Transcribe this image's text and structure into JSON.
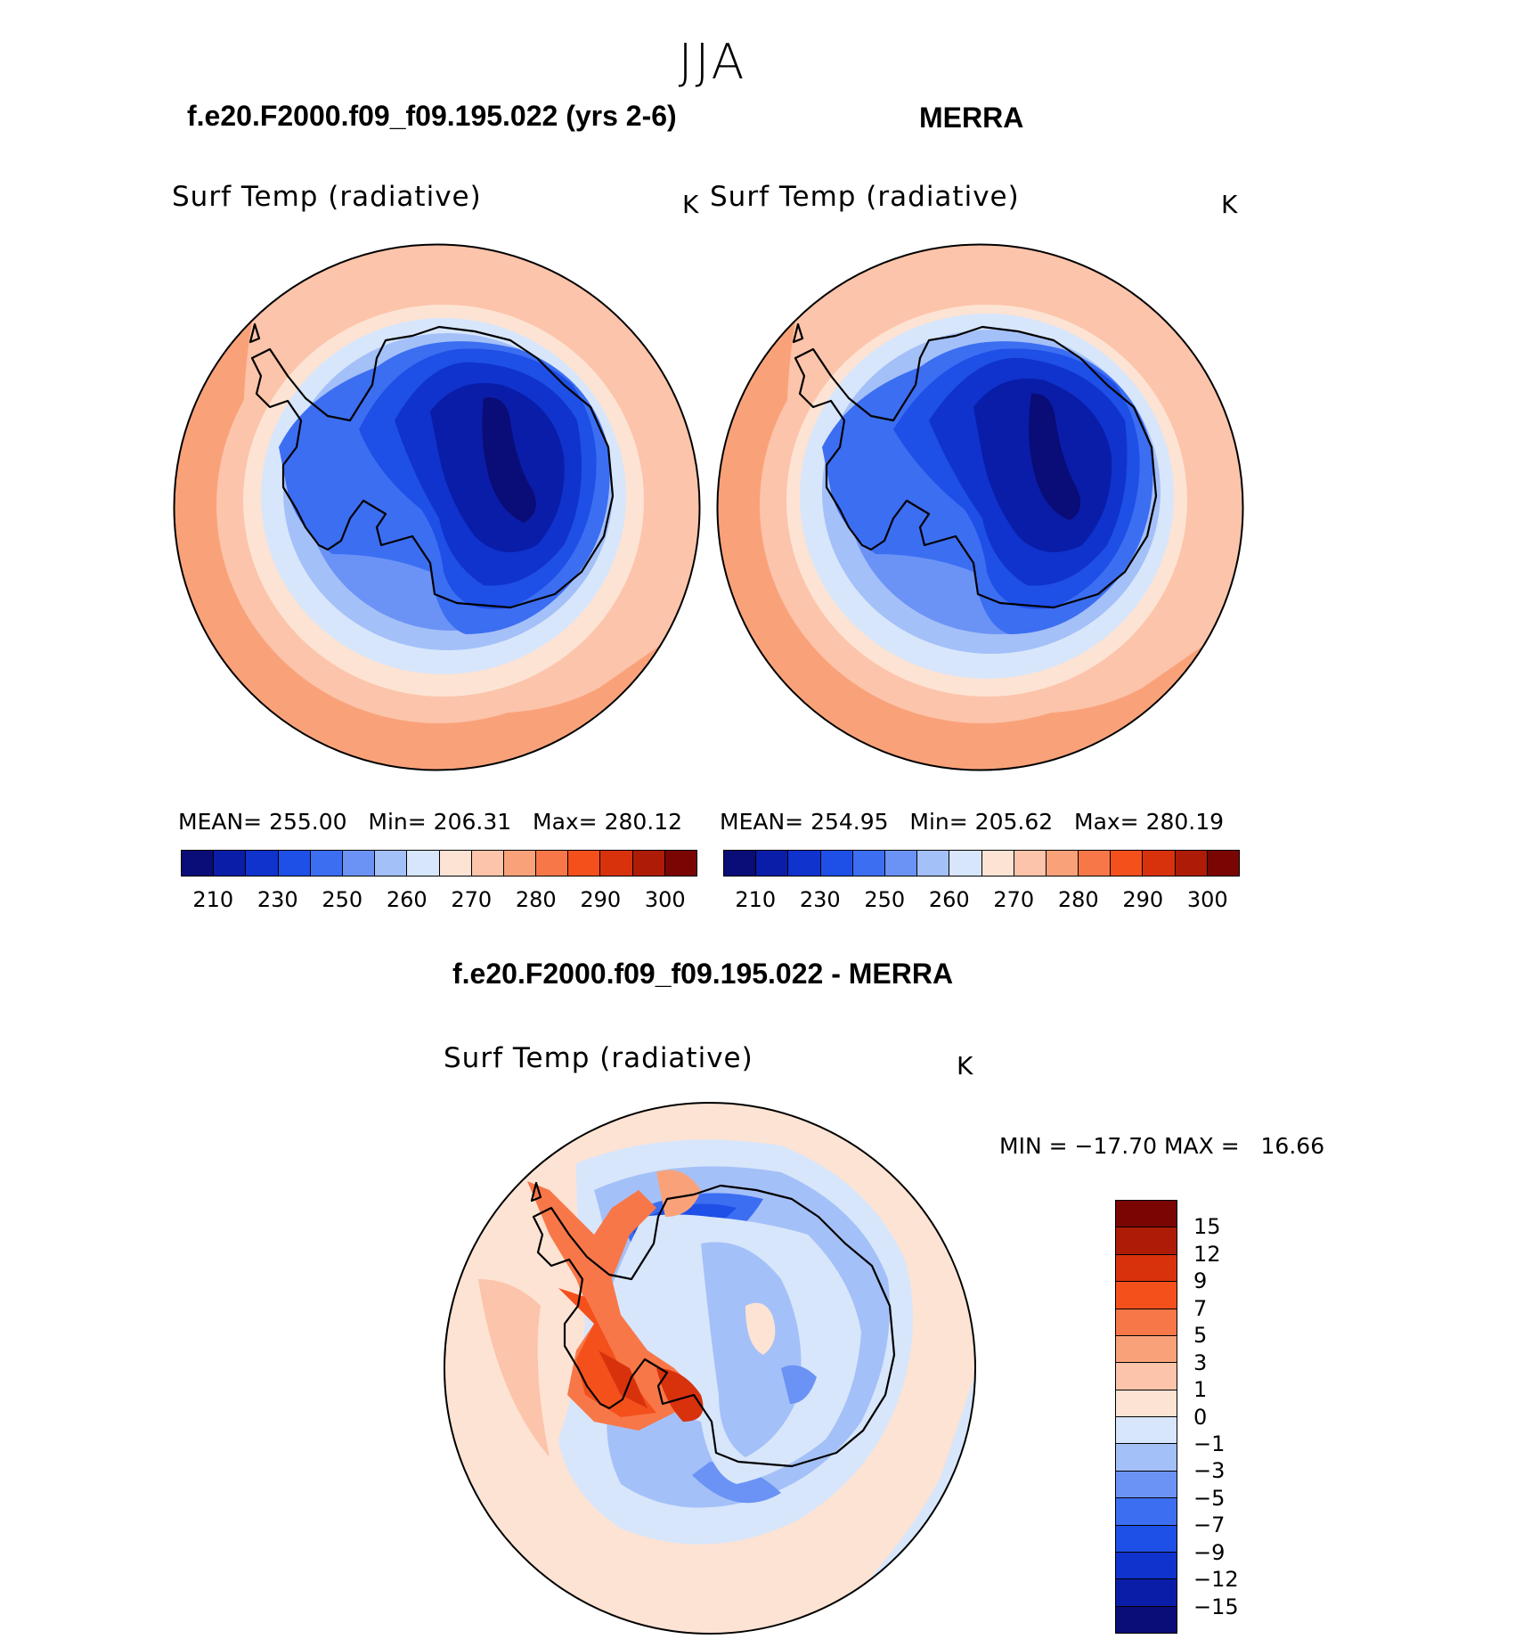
{
  "season": "JJA",
  "panels": [
    {
      "title": "f.e20.F2000.f09_f09.195.022 (yrs 2-6)",
      "variable": "Surf Temp (radiative)",
      "unit": "K",
      "stats": {
        "mean_label": "MEAN=",
        "mean": "255.00",
        "min_label": "Min=",
        "min": "206.31",
        "max_label": "Max=",
        "max": "280.12"
      }
    },
    {
      "title": "MERRA",
      "variable": "Surf Temp (radiative)",
      "unit": "K",
      "stats": {
        "mean_label": "MEAN=",
        "mean": "254.95",
        "min_label": "Min=",
        "min": "205.62",
        "max_label": "Max=",
        "max": "280.19"
      }
    }
  ],
  "abs_colorbar": {
    "colors": [
      "#0a0c77",
      "#0a1da8",
      "#0f33cc",
      "#1e4fe6",
      "#3c6ef2",
      "#6b93f5",
      "#a4c0f8",
      "#d7e6fb",
      "#fde3d3",
      "#fcc4aa",
      "#f9a27a",
      "#f87748",
      "#f4501c",
      "#d8320d",
      "#ae1b06",
      "#7a0603"
    ],
    "tick_labels": [
      "210",
      "230",
      "250",
      "260",
      "270",
      "280",
      "290",
      "300"
    ]
  },
  "diff_panel": {
    "title": "f.e20.F2000.f09_f09.195.022 - MERRA",
    "variable": "Surf Temp (radiative)",
    "unit": "K",
    "stats": {
      "min_label": "MIN =",
      "min": "−17.70",
      "max_label": "MAX =",
      "max": "16.66"
    }
  },
  "diff_colorbar": {
    "colors": [
      "#7a0603",
      "#ae1b06",
      "#d8320d",
      "#f4501c",
      "#f87748",
      "#f9a27a",
      "#fcc4aa",
      "#fde3d3",
      "#d7e6fb",
      "#a4c0f8",
      "#6b93f5",
      "#3c6ef2",
      "#1e4fe6",
      "#0f33cc",
      "#0a1da8",
      "#0a0c77"
    ],
    "labels": [
      "15",
      "12",
      "9",
      "7",
      "5",
      "3",
      "1",
      "0",
      "−1",
      "−3",
      "−5",
      "−7",
      "−9",
      "−12",
      "−15"
    ]
  }
}
